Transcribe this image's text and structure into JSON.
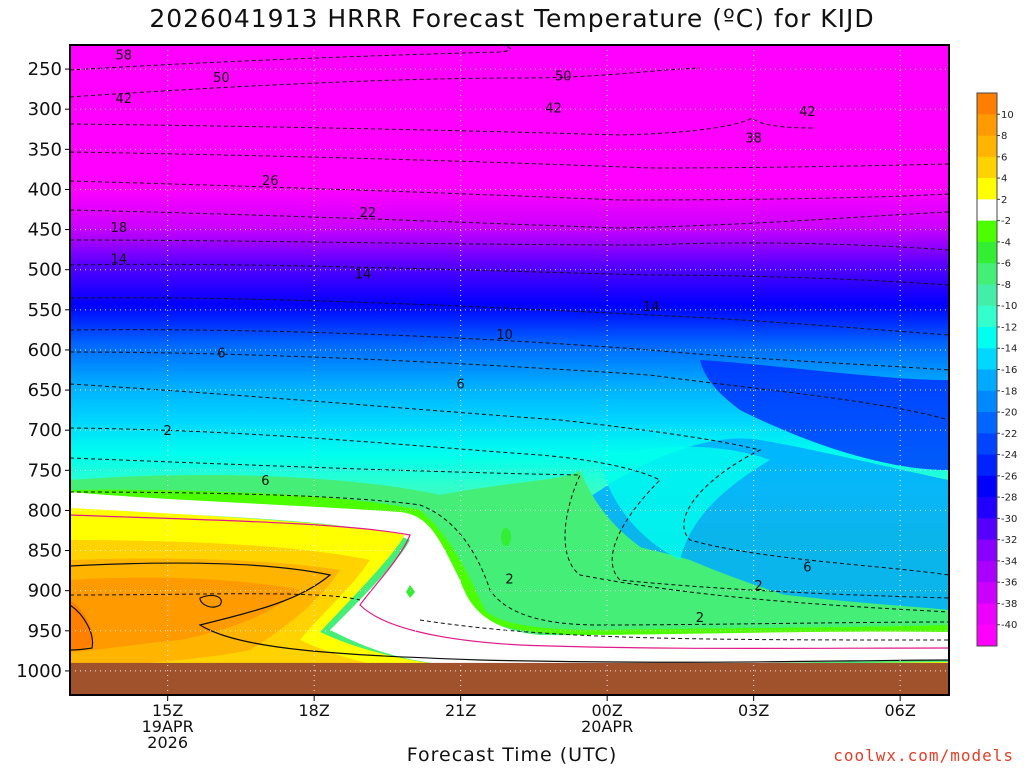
{
  "page": {
    "title": "2026041913 HRRR Forecast Temperature (ºC) for KIJD",
    "xlabel": "Forecast Time (UTC)",
    "credit": "coolwx.com/models"
  },
  "chart_data": {
    "type": "heatmap",
    "title": "2026041913 HRRR Forecast Temperature (ºC) for KIJD",
    "xlabel": "Forecast Time (UTC)",
    "ylabel": "",
    "x_range_hours": [
      13.0,
      31.0
    ],
    "y_range_hpa": [
      220,
      1030
    ],
    "x_ticks": [
      {
        "hour": 15,
        "lines": [
          "15Z",
          "19APR",
          "2026"
        ]
      },
      {
        "hour": 18,
        "lines": [
          "18Z"
        ]
      },
      {
        "hour": 21,
        "lines": [
          "21Z"
        ]
      },
      {
        "hour": 24,
        "lines": [
          "00Z",
          "20APR"
        ]
      },
      {
        "hour": 27,
        "lines": [
          "03Z"
        ]
      },
      {
        "hour": 30,
        "lines": [
          "06Z"
        ]
      }
    ],
    "y_ticks": [
      250,
      300,
      350,
      400,
      450,
      500,
      550,
      600,
      650,
      700,
      750,
      800,
      850,
      900,
      950,
      1000
    ],
    "ground_below_hpa": 990,
    "ground_color": "#a0522d",
    "colorbar": {
      "labels": [
        "10",
        "8",
        "6",
        "4",
        "2",
        "-2",
        "-4",
        "-6",
        "-8",
        "-10",
        "-12",
        "-14",
        "-16",
        "-18",
        "-20",
        "-22",
        "-24",
        "-26",
        "-28",
        "-30",
        "-32",
        "-34",
        "-36",
        "-38",
        "-40"
      ],
      "colors": [
        "#ff8000",
        "#ff9a00",
        "#ffb400",
        "#ffd200",
        "#ffff00",
        "#ffffff",
        "#4cff00",
        "#33ee33",
        "#44ee77",
        "#44eeaa",
        "#33ffcc",
        "#00ffee",
        "#00d8ff",
        "#00aaff",
        "#0088ff",
        "#0066ff",
        "#0044ff",
        "#0022ff",
        "#0000ff",
        "#2200ff",
        "#5500ff",
        "#8800ff",
        "#aa00ff",
        "#cc00ff",
        "#ee00ff",
        "#ff00ff"
      ]
    },
    "contour_labels": [
      {
        "hour": 14.1,
        "hpa": 232,
        "text": "58"
      },
      {
        "hour": 16.1,
        "hpa": 260,
        "text": "50"
      },
      {
        "hour": 23.1,
        "hpa": 258,
        "text": "50"
      },
      {
        "hour": 14.1,
        "hpa": 286,
        "text": "42"
      },
      {
        "hour": 22.9,
        "hpa": 298,
        "text": "42"
      },
      {
        "hour": 28.1,
        "hpa": 302,
        "text": "42"
      },
      {
        "hour": 27.0,
        "hpa": 335,
        "text": "38"
      },
      {
        "hour": 17.1,
        "hpa": 388,
        "text": "26"
      },
      {
        "hour": 19.1,
        "hpa": 428,
        "text": "22"
      },
      {
        "hour": 14.0,
        "hpa": 447,
        "text": "18"
      },
      {
        "hour": 14.0,
        "hpa": 486,
        "text": "14"
      },
      {
        "hour": 19.0,
        "hpa": 505,
        "text": "14"
      },
      {
        "hour": 24.9,
        "hpa": 545,
        "text": "14"
      },
      {
        "hour": 21.9,
        "hpa": 580,
        "text": "10"
      },
      {
        "hour": 16.1,
        "hpa": 603,
        "text": "6"
      },
      {
        "hour": 21.0,
        "hpa": 642,
        "text": "6"
      },
      {
        "hour": 15.0,
        "hpa": 700,
        "text": "2"
      },
      {
        "hour": 17.0,
        "hpa": 762,
        "text": "6"
      },
      {
        "hour": 22.0,
        "hpa": 885,
        "text": "2"
      },
      {
        "hour": 27.1,
        "hpa": 893,
        "text": "2"
      },
      {
        "hour": 28.1,
        "hpa": 870,
        "text": "6"
      },
      {
        "hour": 25.9,
        "hpa": 933,
        "text": "2"
      }
    ]
  }
}
